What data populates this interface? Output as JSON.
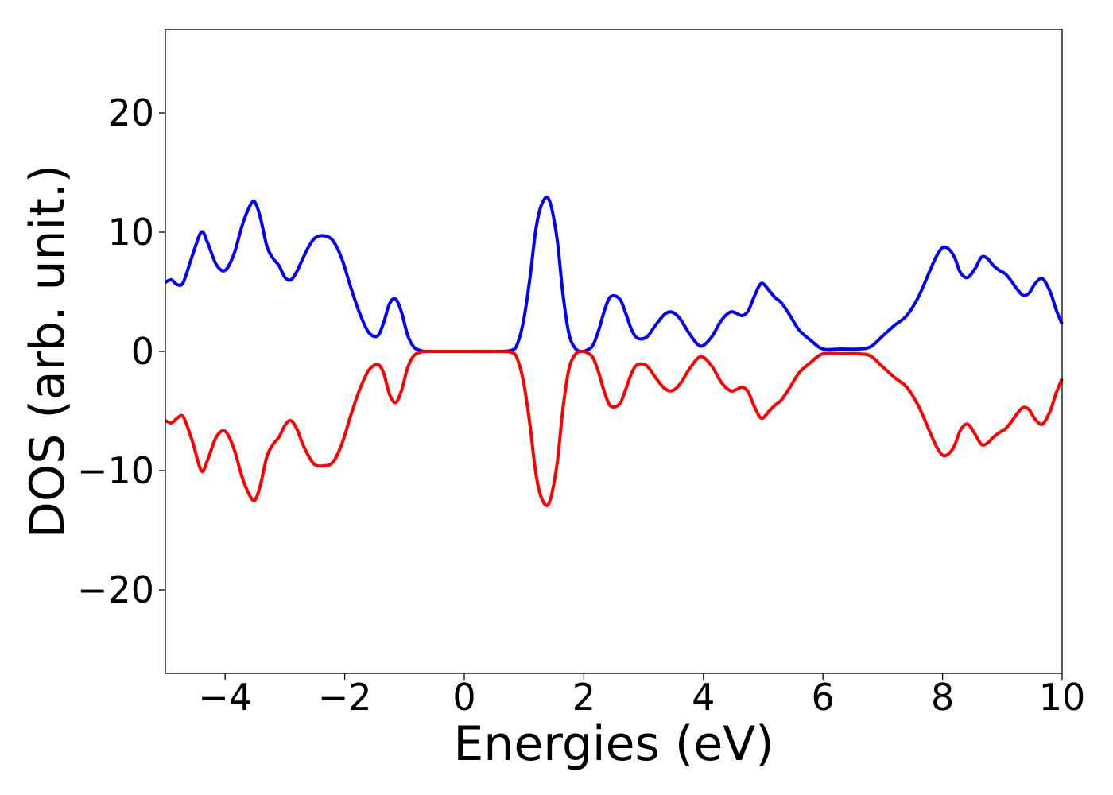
{
  "chart_data": {
    "type": "line",
    "title": "",
    "xlabel": "Energies (eV)",
    "ylabel": "DOS (arb. unit.)",
    "xlim": [
      -5,
      10
    ],
    "ylim": [
      -27,
      27
    ],
    "grid": false,
    "xticks": [
      -4,
      -2,
      0,
      2,
      4,
      6,
      8,
      10
    ],
    "xtick_labels": [
      "−4",
      "−2",
      "0",
      "2",
      "4",
      "6",
      "8",
      "10"
    ],
    "yticks": [
      -20,
      -10,
      0,
      10,
      20
    ],
    "ytick_labels": [
      "−20",
      "−10",
      "0",
      "10",
      "20"
    ],
    "series": [
      {
        "color": "#0000ff",
        "x": [
          -5.0,
          -4.9,
          -4.8,
          -4.7,
          -4.55,
          -4.4,
          -4.3,
          -4.15,
          -4.0,
          -3.85,
          -3.7,
          -3.55,
          -3.48,
          -3.4,
          -3.3,
          -3.2,
          -3.1,
          -3.0,
          -2.9,
          -2.8,
          -2.7,
          -2.6,
          -2.5,
          -2.35,
          -2.2,
          -2.05,
          -1.9,
          -1.75,
          -1.6,
          -1.45,
          -1.35,
          -1.25,
          -1.15,
          -1.05,
          -0.95,
          -0.85,
          -0.75,
          -0.65,
          -0.55,
          -0.4,
          0.0,
          0.5,
          0.8,
          0.9,
          1.0,
          1.1,
          1.2,
          1.3,
          1.42,
          1.55,
          1.65,
          1.75,
          1.85,
          1.95,
          2.05,
          2.15,
          2.25,
          2.35,
          2.45,
          2.6,
          2.7,
          2.8,
          2.9,
          3.05,
          3.2,
          3.35,
          3.47,
          3.6,
          3.75,
          3.9,
          4.0,
          4.15,
          4.3,
          4.45,
          4.55,
          4.65,
          4.75,
          4.85,
          4.97,
          5.1,
          5.2,
          5.3,
          5.45,
          5.6,
          5.8,
          6.0,
          6.3,
          6.6,
          6.8,
          7.0,
          7.2,
          7.4,
          7.6,
          7.8,
          7.9,
          8.0,
          8.1,
          8.2,
          8.3,
          8.42,
          8.55,
          8.65,
          8.75,
          8.85,
          8.95,
          9.05,
          9.15,
          9.25,
          9.35,
          9.45,
          9.55,
          9.67,
          9.8,
          9.9,
          10.0
        ],
        "values": [
          5.8,
          6.0,
          5.6,
          5.8,
          8.0,
          10.0,
          9.2,
          7.3,
          6.8,
          8.2,
          10.8,
          12.5,
          12.3,
          11.0,
          8.8,
          7.8,
          7.2,
          6.2,
          6.0,
          6.7,
          7.8,
          8.8,
          9.5,
          9.7,
          9.3,
          7.8,
          5.4,
          3.2,
          1.6,
          1.3,
          2.4,
          4.0,
          4.4,
          3.3,
          1.4,
          0.4,
          0.1,
          0.0,
          0.0,
          0.0,
          0.0,
          0.0,
          0.1,
          0.8,
          2.8,
          6.2,
          10.3,
          12.4,
          12.7,
          9.5,
          4.8,
          1.5,
          0.3,
          0.0,
          0.1,
          0.5,
          1.8,
          3.5,
          4.6,
          4.4,
          3.2,
          1.8,
          1.1,
          1.2,
          2.2,
          3.1,
          3.3,
          2.8,
          1.6,
          0.6,
          0.5,
          1.3,
          2.6,
          3.3,
          3.2,
          3.0,
          3.4,
          4.6,
          5.7,
          5.1,
          4.5,
          4.1,
          3.0,
          1.8,
          0.9,
          0.2,
          0.2,
          0.2,
          0.4,
          1.3,
          2.2,
          3.0,
          4.6,
          6.9,
          8.0,
          8.7,
          8.6,
          7.9,
          6.6,
          6.2,
          7.0,
          7.9,
          7.8,
          7.2,
          6.8,
          6.5,
          5.9,
          5.2,
          4.7,
          4.9,
          5.7,
          6.1,
          5.0,
          3.5,
          2.3
        ]
      },
      {
        "color": "#ff0000",
        "x": [
          -5.0,
          -4.9,
          -4.8,
          -4.7,
          -4.55,
          -4.4,
          -4.3,
          -4.15,
          -4.0,
          -3.85,
          -3.7,
          -3.55,
          -3.48,
          -3.4,
          -3.3,
          -3.2,
          -3.1,
          -3.0,
          -2.9,
          -2.8,
          -2.7,
          -2.6,
          -2.5,
          -2.35,
          -2.2,
          -2.05,
          -1.9,
          -1.75,
          -1.6,
          -1.45,
          -1.35,
          -1.25,
          -1.15,
          -1.05,
          -0.95,
          -0.85,
          -0.75,
          -0.65,
          -0.55,
          -0.4,
          0.0,
          0.5,
          0.8,
          0.9,
          1.0,
          1.1,
          1.2,
          1.3,
          1.42,
          1.55,
          1.65,
          1.75,
          1.85,
          1.95,
          2.05,
          2.15,
          2.25,
          2.35,
          2.45,
          2.6,
          2.7,
          2.8,
          2.9,
          3.05,
          3.2,
          3.35,
          3.47,
          3.6,
          3.75,
          3.9,
          4.0,
          4.15,
          4.3,
          4.45,
          4.55,
          4.65,
          4.75,
          4.85,
          4.97,
          5.1,
          5.2,
          5.3,
          5.45,
          5.6,
          5.8,
          6.0,
          6.3,
          6.6,
          6.8,
          7.0,
          7.2,
          7.4,
          7.6,
          7.8,
          7.9,
          8.0,
          8.1,
          8.2,
          8.3,
          8.42,
          8.55,
          8.65,
          8.75,
          8.85,
          8.95,
          9.05,
          9.15,
          9.25,
          9.35,
          9.45,
          9.55,
          9.67,
          9.8,
          9.9,
          10.0
        ],
        "values": [
          -5.8,
          -6.0,
          -5.6,
          -5.5,
          -7.5,
          -10.0,
          -9.2,
          -7.2,
          -6.7,
          -8.2,
          -10.8,
          -12.4,
          -12.3,
          -11.0,
          -8.8,
          -7.8,
          -7.2,
          -6.2,
          -5.8,
          -6.5,
          -7.8,
          -8.8,
          -9.5,
          -9.6,
          -9.3,
          -7.8,
          -5.4,
          -3.2,
          -1.6,
          -1.1,
          -1.8,
          -3.6,
          -4.3,
          -3.3,
          -1.4,
          -0.4,
          -0.1,
          0.0,
          0.0,
          0.0,
          0.0,
          0.0,
          -0.1,
          -0.8,
          -2.8,
          -6.2,
          -10.3,
          -12.4,
          -12.7,
          -9.5,
          -4.8,
          -1.5,
          -0.3,
          0.0,
          -0.1,
          -0.5,
          -1.8,
          -3.5,
          -4.6,
          -4.4,
          -3.2,
          -1.8,
          -1.1,
          -1.2,
          -2.2,
          -3.1,
          -3.3,
          -2.8,
          -1.6,
          -0.6,
          -0.5,
          -1.3,
          -2.6,
          -3.3,
          -3.2,
          -3.0,
          -3.4,
          -4.6,
          -5.6,
          -5.0,
          -4.5,
          -4.1,
          -3.0,
          -1.8,
          -0.9,
          -0.2,
          -0.2,
          -0.2,
          -0.4,
          -1.3,
          -2.2,
          -3.0,
          -4.6,
          -6.9,
          -8.0,
          -8.7,
          -8.6,
          -7.9,
          -6.6,
          -6.1,
          -7.0,
          -7.8,
          -7.7,
          -7.2,
          -6.8,
          -6.5,
          -5.9,
          -5.2,
          -4.7,
          -4.9,
          -5.7,
          -6.1,
          -5.0,
          -3.5,
          -2.3
        ]
      }
    ]
  }
}
